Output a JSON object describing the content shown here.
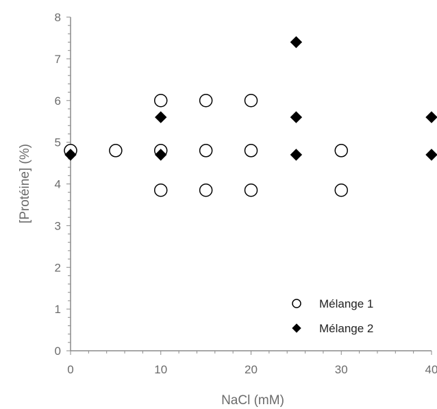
{
  "chart_data": {
    "type": "scatter",
    "title": "",
    "xlabel": "NaCl (mM)",
    "ylabel": "[Protéine] (%)",
    "xlim": [
      0,
      40
    ],
    "ylim": [
      0,
      8
    ],
    "x_ticks": [
      "0",
      "10",
      "20",
      "30",
      "40"
    ],
    "y_ticks": [
      "0",
      "1",
      "2",
      "3",
      "4",
      "5",
      "6",
      "7",
      "8"
    ],
    "grid": false,
    "legend_position": "bottom-right",
    "series": [
      {
        "name": "Mélange 1",
        "marker": "open-circle",
        "color": "#000000",
        "points": [
          [
            0,
            4.8
          ],
          [
            5,
            4.8
          ],
          [
            10,
            6.0
          ],
          [
            10,
            4.8
          ],
          [
            10,
            3.85
          ],
          [
            15,
            6.0
          ],
          [
            15,
            4.8
          ],
          [
            15,
            3.85
          ],
          [
            20,
            6.0
          ],
          [
            20,
            4.8
          ],
          [
            20,
            3.85
          ],
          [
            30,
            4.8
          ],
          [
            30,
            3.85
          ]
        ]
      },
      {
        "name": "Mélange 2",
        "marker": "filled-diamond",
        "color": "#000000",
        "points": [
          [
            0,
            4.7
          ],
          [
            10,
            5.6
          ],
          [
            10,
            4.7
          ],
          [
            25,
            7.4
          ],
          [
            25,
            5.6
          ],
          [
            25,
            4.7
          ],
          [
            40,
            5.6
          ],
          [
            40,
            4.7
          ]
        ]
      }
    ]
  }
}
